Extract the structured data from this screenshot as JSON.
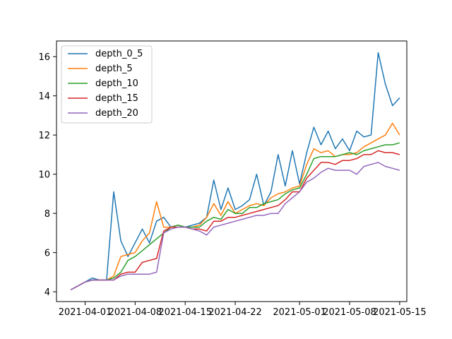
{
  "chart_data": {
    "type": "line",
    "title": "",
    "xlabel": "",
    "ylabel": "",
    "x_axis_type": "date",
    "xlim": [
      "2021-03-28",
      "2021-05-16"
    ],
    "ylim": [
      3.5,
      16.8
    ],
    "grid": false,
    "legend_position": "upper-left",
    "x_ticks": [
      "2021-04-01",
      "2021-04-08",
      "2021-04-15",
      "2021-04-22",
      "2021-05-01",
      "2021-05-08",
      "2021-05-15"
    ],
    "y_ticks": [
      4,
      6,
      8,
      10,
      12,
      14,
      16
    ],
    "series": [
      {
        "name": "depth_0_5",
        "color": "#1f77b4",
        "points": [
          [
            "2021-03-30",
            4.1
          ],
          [
            "2021-03-31",
            4.3
          ],
          [
            "2021-04-01",
            4.5
          ],
          [
            "2021-04-02",
            4.7
          ],
          [
            "2021-04-03",
            4.6
          ],
          [
            "2021-04-04",
            4.6
          ],
          [
            "2021-04-05",
            9.1
          ],
          [
            "2021-04-06",
            6.6
          ],
          [
            "2021-04-07",
            5.8
          ],
          [
            "2021-04-08",
            6.5
          ],
          [
            "2021-04-09",
            7.2
          ],
          [
            "2021-04-10",
            6.5
          ],
          [
            "2021-04-11",
            7.6
          ],
          [
            "2021-04-12",
            7.8
          ],
          [
            "2021-04-13",
            7.3
          ],
          [
            "2021-04-14",
            7.4
          ],
          [
            "2021-04-15",
            7.3
          ],
          [
            "2021-04-16",
            7.4
          ],
          [
            "2021-04-17",
            7.5
          ],
          [
            "2021-04-18",
            7.8
          ],
          [
            "2021-04-19",
            9.7
          ],
          [
            "2021-04-20",
            8.2
          ],
          [
            "2021-04-21",
            9.3
          ],
          [
            "2021-04-22",
            8.2
          ],
          [
            "2021-04-23",
            8.4
          ],
          [
            "2021-04-24",
            8.7
          ],
          [
            "2021-04-25",
            10.0
          ],
          [
            "2021-04-26",
            8.4
          ],
          [
            "2021-04-27",
            9.1
          ],
          [
            "2021-04-28",
            11.0
          ],
          [
            "2021-04-29",
            9.4
          ],
          [
            "2021-04-30",
            11.2
          ],
          [
            "2021-05-01",
            9.5
          ],
          [
            "2021-05-02",
            11.1
          ],
          [
            "2021-05-03",
            12.4
          ],
          [
            "2021-05-04",
            11.5
          ],
          [
            "2021-05-05",
            12.2
          ],
          [
            "2021-05-06",
            11.3
          ],
          [
            "2021-05-07",
            11.8
          ],
          [
            "2021-05-08",
            11.2
          ],
          [
            "2021-05-09",
            12.2
          ],
          [
            "2021-05-10",
            11.9
          ],
          [
            "2021-05-11",
            12.0
          ],
          [
            "2021-05-12",
            16.2
          ],
          [
            "2021-05-13",
            14.6
          ],
          [
            "2021-05-14",
            13.5
          ],
          [
            "2021-05-15",
            13.9
          ]
        ]
      },
      {
        "name": "depth_5",
        "color": "#ff7f0e",
        "points": [
          [
            "2021-03-30",
            4.1
          ],
          [
            "2021-03-31",
            4.3
          ],
          [
            "2021-04-01",
            4.5
          ],
          [
            "2021-04-02",
            4.6
          ],
          [
            "2021-04-03",
            4.6
          ],
          [
            "2021-04-04",
            4.6
          ],
          [
            "2021-04-05",
            4.8
          ],
          [
            "2021-04-06",
            5.8
          ],
          [
            "2021-04-07",
            5.9
          ],
          [
            "2021-04-08",
            6.0
          ],
          [
            "2021-04-09",
            6.6
          ],
          [
            "2021-04-10",
            7.0
          ],
          [
            "2021-04-11",
            8.6
          ],
          [
            "2021-04-12",
            7.3
          ],
          [
            "2021-04-13",
            7.3
          ],
          [
            "2021-04-14",
            7.4
          ],
          [
            "2021-04-15",
            7.3
          ],
          [
            "2021-04-16",
            7.3
          ],
          [
            "2021-04-17",
            7.4
          ],
          [
            "2021-04-18",
            7.8
          ],
          [
            "2021-04-19",
            8.5
          ],
          [
            "2021-04-20",
            7.9
          ],
          [
            "2021-04-21",
            8.6
          ],
          [
            "2021-04-22",
            8.0
          ],
          [
            "2021-04-23",
            8.2
          ],
          [
            "2021-04-24",
            8.4
          ],
          [
            "2021-04-25",
            8.5
          ],
          [
            "2021-04-26",
            8.4
          ],
          [
            "2021-04-27",
            8.8
          ],
          [
            "2021-04-28",
            9.0
          ],
          [
            "2021-04-29",
            9.1
          ],
          [
            "2021-04-30",
            9.3
          ],
          [
            "2021-05-01",
            9.4
          ],
          [
            "2021-05-02",
            10.5
          ],
          [
            "2021-05-03",
            11.3
          ],
          [
            "2021-05-04",
            11.1
          ],
          [
            "2021-05-05",
            11.2
          ],
          [
            "2021-05-06",
            10.9
          ],
          [
            "2021-05-07",
            11.0
          ],
          [
            "2021-05-08",
            11.0
          ],
          [
            "2021-05-09",
            11.1
          ],
          [
            "2021-05-10",
            11.4
          ],
          [
            "2021-05-11",
            11.6
          ],
          [
            "2021-05-12",
            11.8
          ],
          [
            "2021-05-13",
            12.0
          ],
          [
            "2021-05-14",
            12.6
          ],
          [
            "2021-05-15",
            12.0
          ]
        ]
      },
      {
        "name": "depth_10",
        "color": "#2ca02c",
        "points": [
          [
            "2021-03-30",
            4.1
          ],
          [
            "2021-03-31",
            4.3
          ],
          [
            "2021-04-01",
            4.5
          ],
          [
            "2021-04-02",
            4.6
          ],
          [
            "2021-04-03",
            4.6
          ],
          [
            "2021-04-04",
            4.6
          ],
          [
            "2021-04-05",
            4.7
          ],
          [
            "2021-04-06",
            5.0
          ],
          [
            "2021-04-07",
            5.6
          ],
          [
            "2021-04-08",
            5.8
          ],
          [
            "2021-04-09",
            6.1
          ],
          [
            "2021-04-10",
            6.4
          ],
          [
            "2021-04-11",
            6.7
          ],
          [
            "2021-04-12",
            7.0
          ],
          [
            "2021-04-13",
            7.3
          ],
          [
            "2021-04-14",
            7.4
          ],
          [
            "2021-04-15",
            7.3
          ],
          [
            "2021-04-16",
            7.3
          ],
          [
            "2021-04-17",
            7.3
          ],
          [
            "2021-04-18",
            7.6
          ],
          [
            "2021-04-19",
            7.8
          ],
          [
            "2021-04-20",
            7.7
          ],
          [
            "2021-04-21",
            8.2
          ],
          [
            "2021-04-22",
            8.0
          ],
          [
            "2021-04-23",
            8.0
          ],
          [
            "2021-04-24",
            8.3
          ],
          [
            "2021-04-25",
            8.3
          ],
          [
            "2021-04-26",
            8.5
          ],
          [
            "2021-04-27",
            8.6
          ],
          [
            "2021-04-28",
            8.7
          ],
          [
            "2021-04-29",
            9.0
          ],
          [
            "2021-04-30",
            9.2
          ],
          [
            "2021-05-01",
            9.3
          ],
          [
            "2021-05-02",
            10.0
          ],
          [
            "2021-05-03",
            10.8
          ],
          [
            "2021-05-04",
            10.9
          ],
          [
            "2021-05-05",
            10.9
          ],
          [
            "2021-05-06",
            10.9
          ],
          [
            "2021-05-07",
            11.0
          ],
          [
            "2021-05-08",
            11.1
          ],
          [
            "2021-05-09",
            11.0
          ],
          [
            "2021-05-10",
            11.2
          ],
          [
            "2021-05-11",
            11.3
          ],
          [
            "2021-05-12",
            11.4
          ],
          [
            "2021-05-13",
            11.5
          ],
          [
            "2021-05-14",
            11.5
          ],
          [
            "2021-05-15",
            11.6
          ]
        ]
      },
      {
        "name": "depth_15",
        "color": "#d62728",
        "points": [
          [
            "2021-03-30",
            4.1
          ],
          [
            "2021-03-31",
            4.3
          ],
          [
            "2021-04-01",
            4.5
          ],
          [
            "2021-04-02",
            4.6
          ],
          [
            "2021-04-03",
            4.6
          ],
          [
            "2021-04-04",
            4.6
          ],
          [
            "2021-04-05",
            4.6
          ],
          [
            "2021-04-06",
            4.9
          ],
          [
            "2021-04-07",
            5.0
          ],
          [
            "2021-04-08",
            5.0
          ],
          [
            "2021-04-09",
            5.5
          ],
          [
            "2021-04-10",
            5.6
          ],
          [
            "2021-04-11",
            5.7
          ],
          [
            "2021-04-12",
            7.1
          ],
          [
            "2021-04-13",
            7.3
          ],
          [
            "2021-04-14",
            7.3
          ],
          [
            "2021-04-15",
            7.3
          ],
          [
            "2021-04-16",
            7.2
          ],
          [
            "2021-04-17",
            7.2
          ],
          [
            "2021-04-18",
            7.1
          ],
          [
            "2021-04-19",
            7.6
          ],
          [
            "2021-04-20",
            7.6
          ],
          [
            "2021-04-21",
            7.8
          ],
          [
            "2021-04-22",
            7.8
          ],
          [
            "2021-04-23",
            7.9
          ],
          [
            "2021-04-24",
            8.0
          ],
          [
            "2021-04-25",
            8.1
          ],
          [
            "2021-04-26",
            8.2
          ],
          [
            "2021-04-27",
            8.3
          ],
          [
            "2021-04-28",
            8.4
          ],
          [
            "2021-04-29",
            8.7
          ],
          [
            "2021-04-30",
            9.1
          ],
          [
            "2021-05-01",
            9.1
          ],
          [
            "2021-05-02",
            9.8
          ],
          [
            "2021-05-03",
            10.2
          ],
          [
            "2021-05-04",
            10.6
          ],
          [
            "2021-05-05",
            10.6
          ],
          [
            "2021-05-06",
            10.5
          ],
          [
            "2021-05-07",
            10.7
          ],
          [
            "2021-05-08",
            10.7
          ],
          [
            "2021-05-09",
            10.8
          ],
          [
            "2021-05-10",
            11.0
          ],
          [
            "2021-05-11",
            11.0
          ],
          [
            "2021-05-12",
            11.2
          ],
          [
            "2021-05-13",
            11.1
          ],
          [
            "2021-05-14",
            11.1
          ],
          [
            "2021-05-15",
            11.0
          ]
        ]
      },
      {
        "name": "depth_20",
        "color": "#9467bd",
        "points": [
          [
            "2021-03-30",
            4.1
          ],
          [
            "2021-03-31",
            4.3
          ],
          [
            "2021-04-01",
            4.5
          ],
          [
            "2021-04-02",
            4.6
          ],
          [
            "2021-04-03",
            4.6
          ],
          [
            "2021-04-04",
            4.6
          ],
          [
            "2021-04-05",
            4.6
          ],
          [
            "2021-04-06",
            4.8
          ],
          [
            "2021-04-07",
            4.9
          ],
          [
            "2021-04-08",
            4.9
          ],
          [
            "2021-04-09",
            4.9
          ],
          [
            "2021-04-10",
            4.9
          ],
          [
            "2021-04-11",
            5.0
          ],
          [
            "2021-04-12",
            7.0
          ],
          [
            "2021-04-13",
            7.2
          ],
          [
            "2021-04-14",
            7.3
          ],
          [
            "2021-04-15",
            7.3
          ],
          [
            "2021-04-16",
            7.2
          ],
          [
            "2021-04-17",
            7.1
          ],
          [
            "2021-04-18",
            6.9
          ],
          [
            "2021-04-19",
            7.3
          ],
          [
            "2021-04-20",
            7.4
          ],
          [
            "2021-04-21",
            7.5
          ],
          [
            "2021-04-22",
            7.6
          ],
          [
            "2021-04-23",
            7.7
          ],
          [
            "2021-04-24",
            7.8
          ],
          [
            "2021-04-25",
            7.9
          ],
          [
            "2021-04-26",
            7.9
          ],
          [
            "2021-04-27",
            8.0
          ],
          [
            "2021-04-28",
            8.0
          ],
          [
            "2021-04-29",
            8.5
          ],
          [
            "2021-04-30",
            8.8
          ],
          [
            "2021-05-01",
            9.1
          ],
          [
            "2021-05-02",
            9.6
          ],
          [
            "2021-05-03",
            9.8
          ],
          [
            "2021-05-04",
            10.1
          ],
          [
            "2021-05-05",
            10.3
          ],
          [
            "2021-05-06",
            10.2
          ],
          [
            "2021-05-07",
            10.2
          ],
          [
            "2021-05-08",
            10.2
          ],
          [
            "2021-05-09",
            10.0
          ],
          [
            "2021-05-10",
            10.4
          ],
          [
            "2021-05-11",
            10.5
          ],
          [
            "2021-05-12",
            10.6
          ],
          [
            "2021-05-13",
            10.4
          ],
          [
            "2021-05-14",
            10.3
          ],
          [
            "2021-05-15",
            10.2
          ]
        ]
      }
    ]
  }
}
